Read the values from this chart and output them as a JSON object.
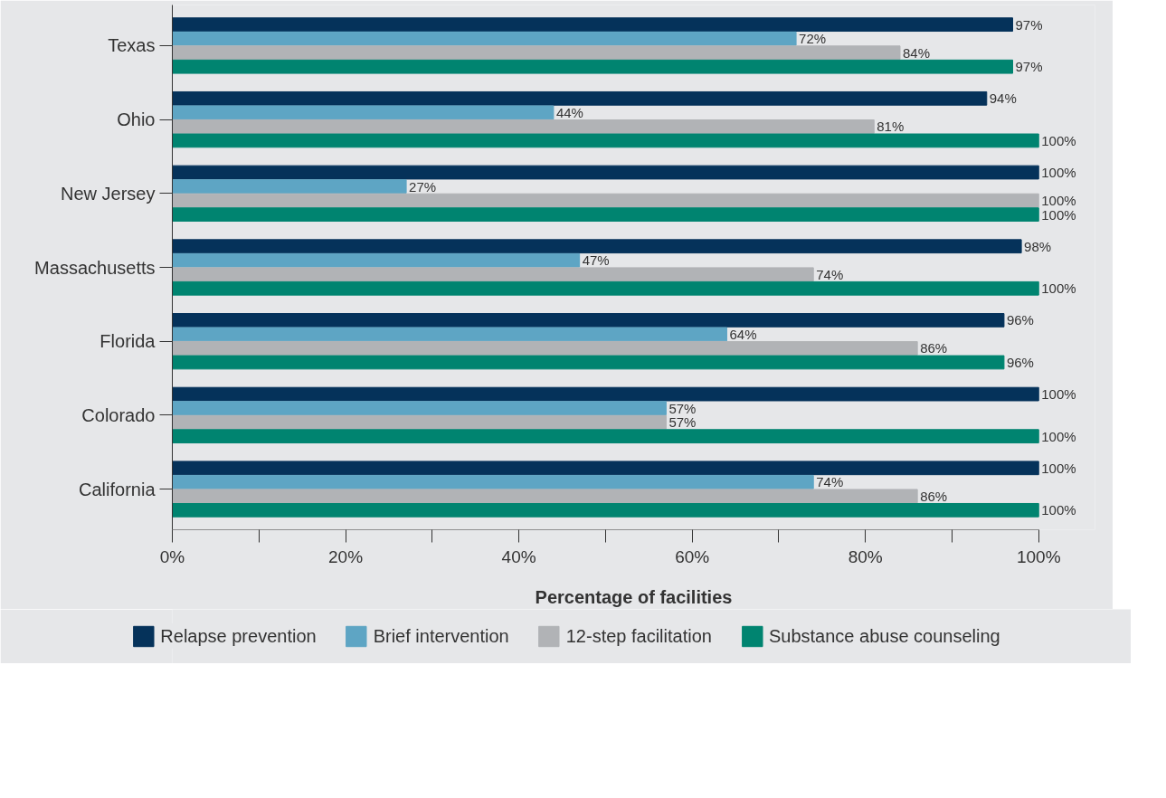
{
  "chart_data": {
    "type": "bar",
    "orientation": "horizontal",
    "xlabel": "Percentage of facilities",
    "categories": [
      "Texas",
      "Ohio",
      "New Jersey",
      "Massachusetts",
      "Florida",
      "Colorado",
      "California"
    ],
    "series": [
      {
        "name": "Relapse prevention",
        "color": "#05325a",
        "values": [
          97,
          94,
          100,
          98,
          96,
          100,
          100
        ],
        "value_labels": [
          "97%",
          "94%",
          "100%",
          "98%",
          "96%",
          "100%",
          "100%"
        ]
      },
      {
        "name": "Brief intervention",
        "color": "#5ea5c4",
        "values": [
          72,
          44,
          27,
          47,
          64,
          57,
          74
        ],
        "value_labels": [
          "72%",
          "44%",
          "27%",
          "47%",
          "64%",
          "57%",
          "74%"
        ]
      },
      {
        "name": "12-step facilitation",
        "color": "#b1b3b6",
        "values": [
          84,
          81,
          100,
          74,
          86,
          57,
          86
        ],
        "value_labels": [
          "84%",
          "81%",
          "100%",
          "74%",
          "86%",
          "57%",
          "86%"
        ]
      },
      {
        "name": "Substance abuse counseling",
        "color": "#008470",
        "values": [
          97,
          100,
          100,
          100,
          96,
          100,
          100
        ],
        "value_labels": [
          "97%",
          "100%",
          "100%",
          "100%",
          "96%",
          "100%",
          "100%"
        ]
      }
    ],
    "xlim": [
      0,
      100
    ],
    "xticks": [
      {
        "value": 0,
        "label": "0%"
      },
      {
        "value": 10,
        "label": null
      },
      {
        "value": 20,
        "label": "20%"
      },
      {
        "value": 30,
        "label": null
      },
      {
        "value": 40,
        "label": "40%"
      },
      {
        "value": 50,
        "label": null
      },
      {
        "value": 60,
        "label": "60%"
      },
      {
        "value": 70,
        "label": null
      },
      {
        "value": 80,
        "label": "80%"
      },
      {
        "value": 90,
        "label": null
      },
      {
        "value": 100,
        "label": "100%"
      }
    ],
    "legend": "bottom"
  }
}
